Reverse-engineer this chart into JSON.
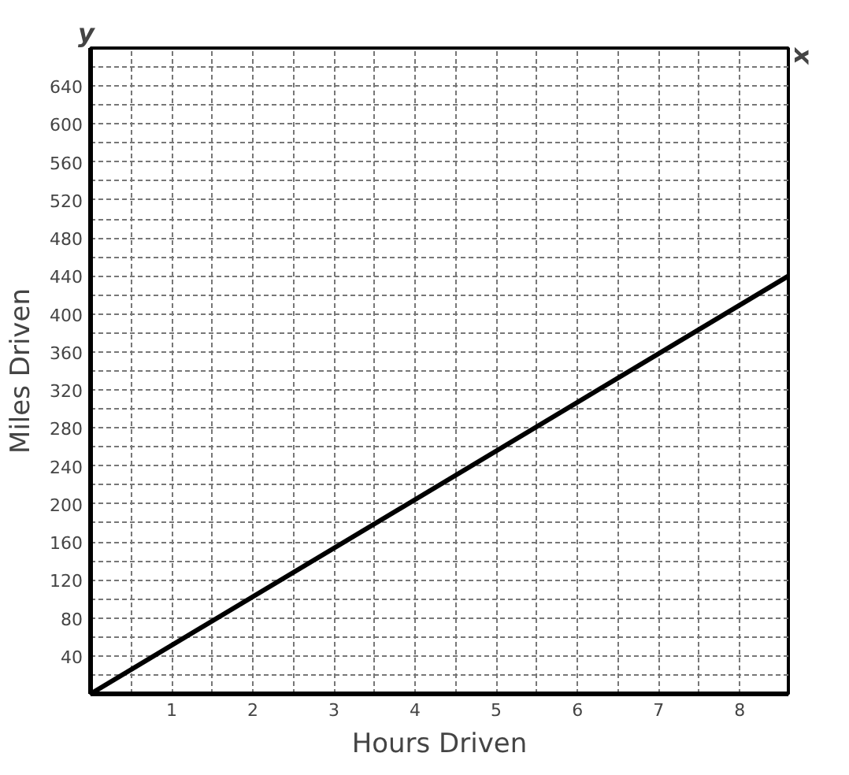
{
  "chart_data": {
    "type": "line",
    "xlabel": "Hours Driven",
    "ylabel": "Miles Driven",
    "annotations": [
      "y",
      "x"
    ],
    "x": [
      0,
      8.6
    ],
    "series": [
      {
        "color": "#000000",
        "values": [
          0,
          440
        ]
      }
    ],
    "xlim": [
      0,
      8.6
    ],
    "ylim": [
      0,
      680
    ],
    "xticks": [
      {
        "value": 0.5,
        "label": null
      },
      1,
      {
        "value": 1.5,
        "label": null
      },
      2,
      {
        "value": 2.5,
        "label": null
      },
      3,
      {
        "value": 3.5,
        "label": null
      },
      4,
      {
        "value": 4.5,
        "label": null
      },
      5,
      {
        "value": 5.5,
        "label": null
      },
      6,
      {
        "value": 6.5,
        "label": null
      },
      7,
      {
        "value": 7.5,
        "label": null
      },
      8
    ],
    "yticks": [
      {
        "value": 20,
        "label": null
      },
      40,
      {
        "value": 60,
        "label": null
      },
      80,
      {
        "value": 100,
        "label": null
      },
      120,
      {
        "value": 140,
        "label": null
      },
      160,
      {
        "value": 180,
        "label": null
      },
      200,
      {
        "value": 220,
        "label": null
      },
      240,
      {
        "value": 260,
        "label": null
      },
      280,
      {
        "value": 300,
        "label": null
      },
      320,
      {
        "value": 340,
        "label": null
      },
      360,
      {
        "value": 380,
        "label": null
      },
      400,
      {
        "value": 420,
        "label": null
      },
      440,
      {
        "value": 460,
        "label": null
      },
      480,
      {
        "value": 500,
        "label": null
      },
      520,
      {
        "value": 540,
        "label": null
      },
      560,
      {
        "value": 580,
        "label": null
      },
      600,
      {
        "value": 620,
        "label": null
      },
      640,
      {
        "value": 660,
        "label": null
      }
    ],
    "grid": true,
    "marker": "none",
    "line_style": "solid"
  }
}
